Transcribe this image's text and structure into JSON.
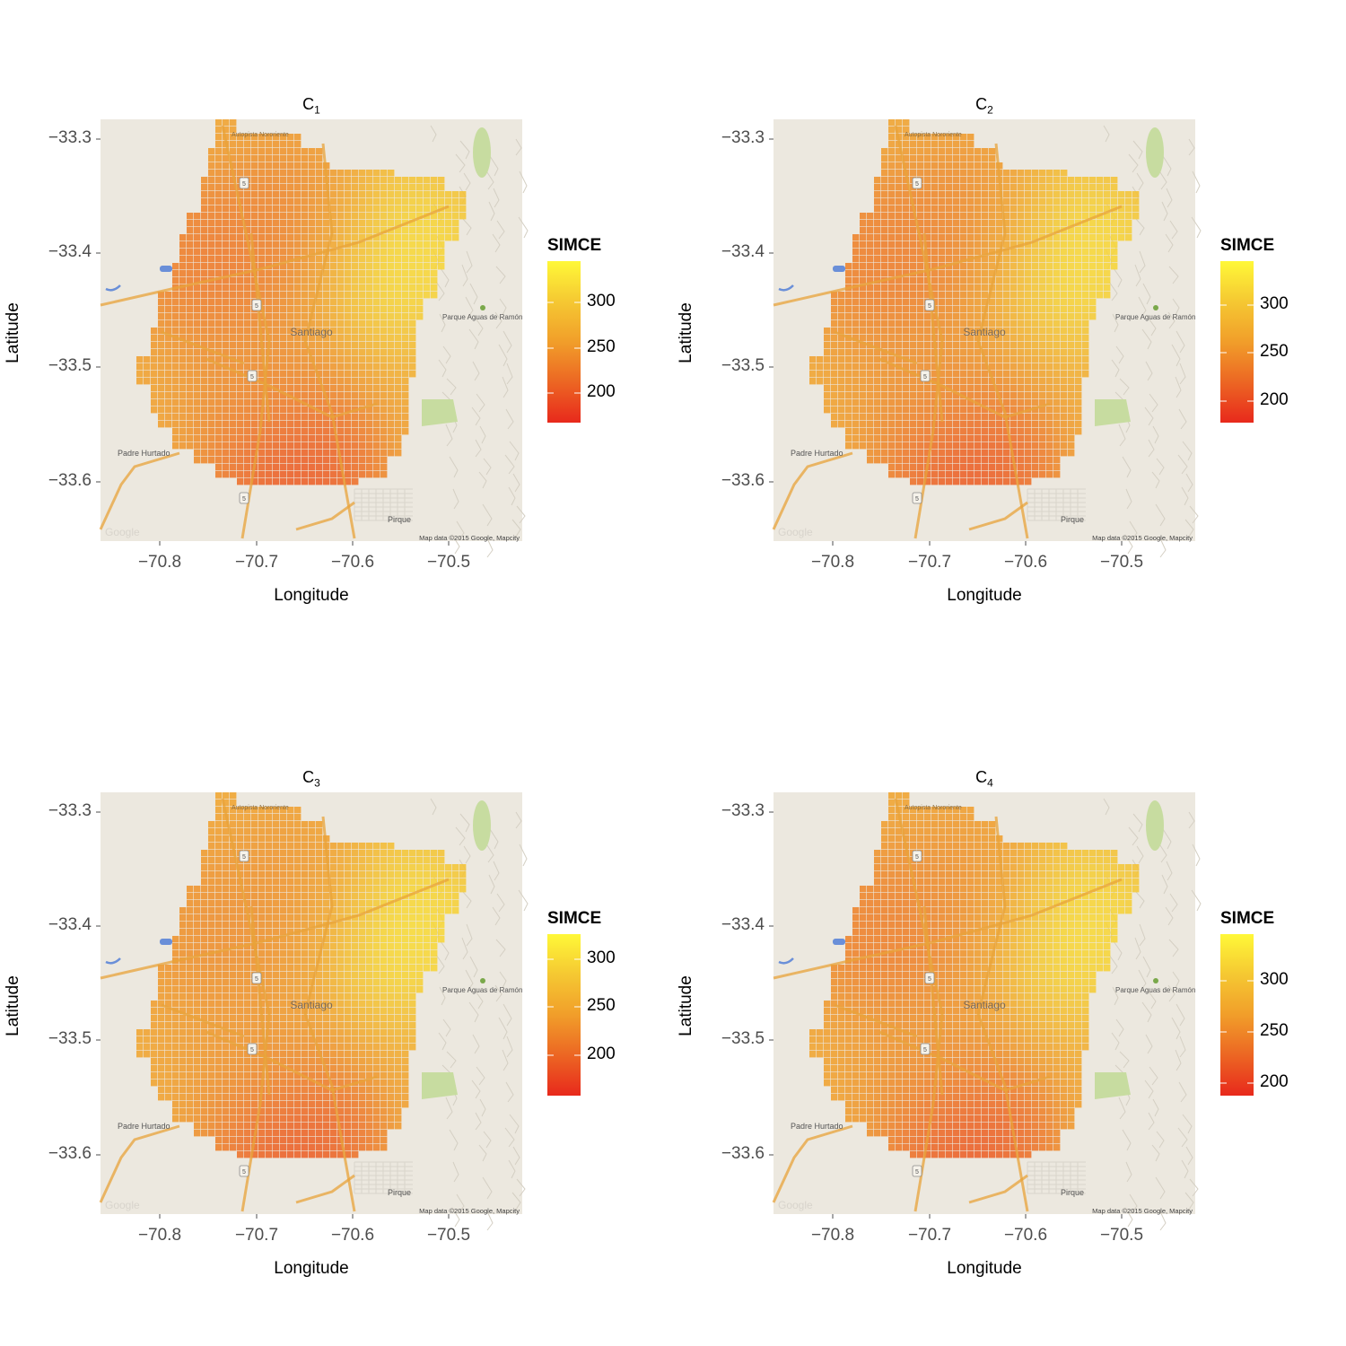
{
  "figure": {
    "panels": [
      {
        "title_main": "C",
        "title_sub": "1",
        "legend_title": "SIMCE",
        "legend_ticks": [
          "300",
          "250",
          "200"
        ],
        "legend_range": [
          155,
          345
        ]
      },
      {
        "title_main": "C",
        "title_sub": "2",
        "legend_title": "SIMCE",
        "legend_ticks": [
          "300",
          "250",
          "200"
        ],
        "legend_range": [
          165,
          345
        ]
      },
      {
        "title_main": "C",
        "title_sub": "3",
        "legend_title": "SIMCE",
        "legend_ticks": [
          "300",
          "250",
          "200"
        ],
        "legend_range": [
          155,
          325
        ]
      },
      {
        "title_main": "C",
        "title_sub": "4",
        "legend_title": "SIMCE",
        "legend_ticks": [
          "300",
          "250",
          "200"
        ],
        "legend_range": [
          170,
          345
        ]
      }
    ],
    "x_axis": {
      "label": "Longitude",
      "ticks": [
        "−70.8",
        "−70.7",
        "−70.6",
        "−70.5"
      ]
    },
    "y_axis": {
      "label": "Latitude",
      "ticks": [
        "−33.3",
        "−33.4",
        "−33.5",
        "−33.6"
      ]
    },
    "map_labels": {
      "santiago": "Santiago",
      "padre_hurtado": "Padre Hurtado",
      "pirque": "Pirque",
      "parque": "Parque Aguas de Ramón",
      "autopista": "Autopista Nororiente",
      "attribution": "Map data ©2015 Google, Mapcity",
      "google": "Google",
      "route": "5"
    },
    "colors": {
      "low": "#e8291c",
      "mid": "#f0a52a",
      "high": "#fff838",
      "map_bg": "#ece8df",
      "road": "#e8a33a"
    }
  },
  "chart_data": [
    {
      "type": "heatmap",
      "title": "C1",
      "xlabel": "Longitude",
      "ylabel": "Latitude",
      "xlim": [
        -70.86,
        -70.42
      ],
      "ylim": [
        -33.65,
        -33.28
      ],
      "legend_title": "SIMCE",
      "color_range": [
        155,
        345
      ],
      "hotspots": [
        {
          "lon": -70.74,
          "lat": -33.41,
          "value": 200
        },
        {
          "lon": -70.66,
          "lat": -33.37,
          "value": 215
        },
        {
          "lon": -70.66,
          "lat": -33.59,
          "value": 165
        },
        {
          "lon": -70.7,
          "lat": -33.52,
          "value": 225
        },
        {
          "lon": -70.55,
          "lat": -33.4,
          "value": 335
        }
      ]
    },
    {
      "type": "heatmap",
      "title": "C2",
      "xlabel": "Longitude",
      "ylabel": "Latitude",
      "xlim": [
        -70.86,
        -70.42
      ],
      "ylim": [
        -33.65,
        -33.28
      ],
      "legend_title": "SIMCE",
      "color_range": [
        165,
        345
      ],
      "hotspots": [
        {
          "lon": -70.74,
          "lat": -33.41,
          "value": 210
        },
        {
          "lon": -70.66,
          "lat": -33.37,
          "value": 225
        },
        {
          "lon": -70.66,
          "lat": -33.59,
          "value": 175
        },
        {
          "lon": -70.7,
          "lat": -33.52,
          "value": 235
        },
        {
          "lon": -70.55,
          "lat": -33.4,
          "value": 335
        }
      ]
    },
    {
      "type": "heatmap",
      "title": "C3",
      "xlabel": "Longitude",
      "ylabel": "Latitude",
      "xlim": [
        -70.86,
        -70.42
      ],
      "ylim": [
        -33.65,
        -33.28
      ],
      "legend_title": "SIMCE",
      "color_range": [
        155,
        325
      ],
      "hotspots": [
        {
          "lon": -70.74,
          "lat": -33.41,
          "value": 215
        },
        {
          "lon": -70.66,
          "lat": -33.37,
          "value": 220
        },
        {
          "lon": -70.66,
          "lat": -33.59,
          "value": 165
        },
        {
          "lon": -70.7,
          "lat": -33.52,
          "value": 225
        },
        {
          "lon": -70.55,
          "lat": -33.4,
          "value": 318
        }
      ]
    },
    {
      "type": "heatmap",
      "title": "C4",
      "xlabel": "Longitude",
      "ylabel": "Latitude",
      "xlim": [
        -70.86,
        -70.42
      ],
      "ylim": [
        -33.65,
        -33.28
      ],
      "legend_title": "SIMCE",
      "color_range": [
        170,
        345
      ],
      "hotspots": [
        {
          "lon": -70.74,
          "lat": -33.41,
          "value": 215
        },
        {
          "lon": -70.66,
          "lat": -33.37,
          "value": 235
        },
        {
          "lon": -70.66,
          "lat": -33.59,
          "value": 180
        },
        {
          "lon": -70.7,
          "lat": -33.52,
          "value": 240
        },
        {
          "lon": -70.55,
          "lat": -33.4,
          "value": 335
        }
      ]
    }
  ]
}
